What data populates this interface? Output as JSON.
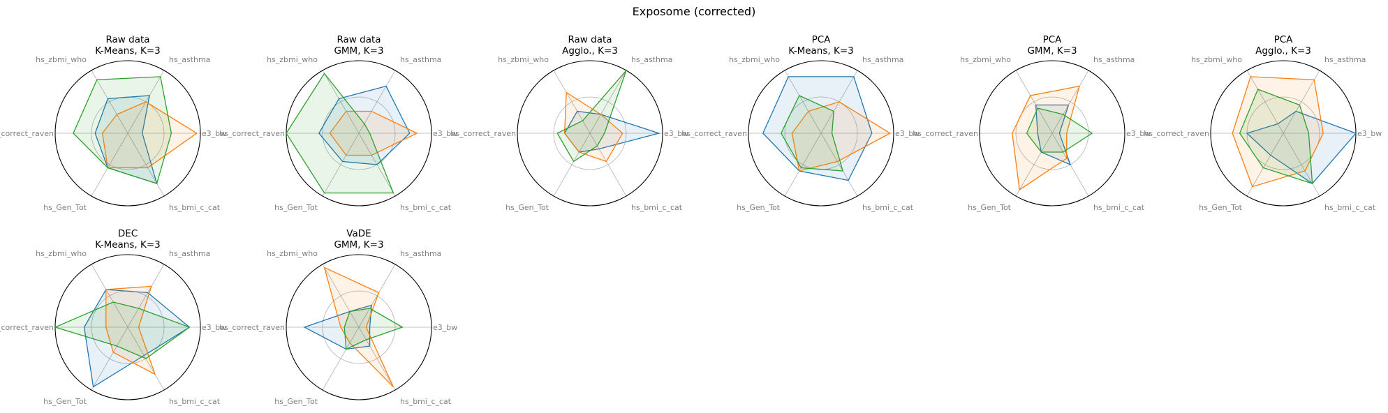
{
  "figure": {
    "title": "Exposome (corrected)"
  },
  "colors": {
    "series": [
      "#1f77b4",
      "#ff7f0e",
      "#2ca02c"
    ],
    "grid": "#b0b0b0",
    "frame": "#000000",
    "label": "#808080"
  },
  "chart_data": [
    {
      "type": "radar",
      "title_line1": "Raw data",
      "title_line2": "K-Means, K=3",
      "axes": [
        "e3_bw",
        "hs_asthma",
        "hs_zbmi_who",
        "hs_correct_raven",
        "hs_Gen_Tot",
        "hs_bmi_c_cat"
      ],
      "rlim": [
        0,
        1
      ],
      "rgrid": [
        0.5
      ],
      "grid": true,
      "series": [
        {
          "values": [
            0.2,
            0.6,
            0.55,
            0.45,
            0.55,
            0.8
          ]
        },
        {
          "values": [
            0.95,
            0.5,
            0.3,
            0.35,
            0.55,
            0.55
          ]
        },
        {
          "values": [
            0.6,
            0.9,
            0.85,
            0.75,
            0.55,
            0.8
          ]
        }
      ]
    },
    {
      "type": "radar",
      "title_line1": "Raw data",
      "title_line2": "GMM, K=3",
      "axes": [
        "e3_bw",
        "hs_asthma",
        "hs_zbmi_who",
        "hs_correct_raven",
        "hs_Gen_Tot",
        "hs_bmi_c_cat"
      ],
      "rlim": [
        0,
        1
      ],
      "rgrid": [
        0.5
      ],
      "grid": true,
      "series": [
        {
          "values": [
            0.7,
            0.75,
            0.55,
            0.55,
            0.45,
            0.5
          ]
        },
        {
          "values": [
            0.8,
            0.35,
            0.35,
            0.4,
            0.35,
            0.35
          ]
        },
        {
          "values": [
            0.15,
            0.15,
            0.95,
            1.0,
            0.95,
            0.95
          ]
        }
      ]
    },
    {
      "type": "radar",
      "title_line1": "Raw data",
      "title_line2": "Agglo., K=3",
      "axes": [
        "e3_bw",
        "hs_asthma",
        "hs_zbmi_who",
        "hs_correct_raven",
        "hs_Gen_Tot",
        "hs_bmi_c_cat"
      ],
      "rlim": [
        0,
        1
      ],
      "rgrid": [
        0.5
      ],
      "grid": true,
      "series": [
        {
          "values": [
            0.95,
            0.3,
            0.35,
            0.35,
            0.3,
            0.25
          ]
        },
        {
          "values": [
            0.45,
            0.3,
            0.65,
            0.35,
            0.3,
            0.45
          ]
        },
        {
          "values": [
            0.2,
            1.0,
            0.2,
            0.45,
            0.45,
            0.2
          ]
        }
      ]
    },
    {
      "type": "radar",
      "title_line1": "PCA",
      "title_line2": "K-Means, K=3",
      "axes": [
        "e3_bw",
        "hs_asthma",
        "hs_zbmi_who",
        "hs_correct_raven",
        "hs_Gen_Tot",
        "hs_bmi_c_cat"
      ],
      "rlim": [
        0,
        1
      ],
      "rgrid": [
        0.5
      ],
      "grid": true,
      "series": [
        {
          "values": [
            0.7,
            0.9,
            0.9,
            0.8,
            0.6,
            0.75
          ]
        },
        {
          "values": [
            0.95,
            0.5,
            0.35,
            0.4,
            0.6,
            0.45
          ]
        },
        {
          "values": [
            0.15,
            0.35,
            0.6,
            0.55,
            0.55,
            0.6
          ]
        }
      ]
    },
    {
      "type": "radar",
      "title_line1": "PCA",
      "title_line2": "GMM, K=3",
      "axes": [
        "e3_bw",
        "hs_asthma",
        "hs_zbmi_who",
        "hs_correct_raven",
        "hs_Gen_Tot",
        "hs_bmi_c_cat"
      ],
      "rlim": [
        0,
        1
      ],
      "rgrid": [
        0.5
      ],
      "grid": true,
      "series": [
        {
          "values": [
            0.1,
            0.45,
            0.45,
            0.2,
            0.3,
            0.5
          ]
        },
        {
          "values": [
            0.2,
            0.75,
            0.6,
            0.55,
            0.9,
            0.4
          ]
        },
        {
          "values": [
            0.55,
            0.3,
            0.4,
            0.35,
            0.3,
            0.3
          ]
        }
      ]
    },
    {
      "type": "radar",
      "title_line1": "PCA",
      "title_line2": "Agglo., K=3",
      "axes": [
        "e3_bw",
        "hs_asthma",
        "hs_zbmi_who",
        "hs_correct_raven",
        "hs_Gen_Tot",
        "hs_bmi_c_cat"
      ],
      "rlim": [
        0,
        1
      ],
      "rgrid": [
        0.5
      ],
      "grid": true,
      "series": [
        {
          "values": [
            1.0,
            0.35,
            0.15,
            0.5,
            0.35,
            0.8
          ]
        },
        {
          "values": [
            0.55,
            0.85,
            0.9,
            0.7,
            0.85,
            0.6
          ]
        },
        {
          "values": [
            0.35,
            0.45,
            0.7,
            0.6,
            0.55,
            0.8
          ]
        }
      ]
    },
    {
      "type": "radar",
      "title_line1": "DEC",
      "title_line2": "K-Means, K=3",
      "axes": [
        "e3_bw",
        "hs_asthma",
        "hs_zbmi_who",
        "hs_correct_raven",
        "hs_Gen_Tot",
        "hs_bmi_c_cat"
      ],
      "rlim": [
        0,
        1
      ],
      "rgrid": [
        0.5
      ],
      "grid": true,
      "series": [
        {
          "values": [
            0.85,
            0.55,
            0.6,
            0.6,
            0.95,
            0.45
          ]
        },
        {
          "values": [
            0.15,
            0.65,
            0.6,
            0.3,
            0.4,
            0.75
          ]
        },
        {
          "values": [
            0.85,
            0.3,
            0.4,
            1.0,
            0.3,
            0.5
          ]
        }
      ]
    },
    {
      "type": "radar",
      "title_line1": "VaDE",
      "title_line2": "GMM, K=3",
      "axes": [
        "e3_bw",
        "hs_asthma",
        "hs_zbmi_who",
        "hs_correct_raven",
        "hs_Gen_Tot",
        "hs_bmi_c_cat"
      ],
      "rlim": [
        0,
        1
      ],
      "rgrid": [
        0.5
      ],
      "grid": true,
      "series": [
        {
          "values": [
            0.15,
            0.35,
            0.25,
            0.75,
            0.35,
            0.3
          ]
        },
        {
          "values": [
            0.1,
            0.55,
            0.95,
            0.25,
            0.25,
            0.95
          ]
        },
        {
          "values": [
            0.6,
            0.3,
            0.25,
            0.2,
            0.35,
            0.2
          ]
        }
      ]
    }
  ]
}
